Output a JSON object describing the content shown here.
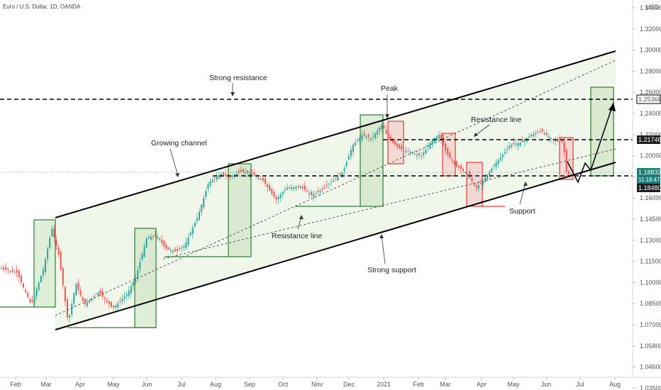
{
  "header": {
    "title": "Euro / U.S. Dollar, 1D, OANDA"
  },
  "currency_label": "USD",
  "chart_data": {
    "type": "candlestick",
    "title": "Euro / U.S. Dollar, 1D, OANDA",
    "x_ticks": [
      "Feb",
      "Mar",
      "Apr",
      "May",
      "Jun",
      "Jul",
      "Aug",
      "Sep",
      "Oct",
      "Nov",
      "Dec",
      "2021",
      "Feb",
      "Mar",
      "Apr",
      "May",
      "Jun",
      "Jul",
      "Aug"
    ],
    "y_ticks": [
      "1.34000",
      "1.32000",
      "1.30000",
      "1.28000",
      "1.26000",
      "1.24000",
      "1.22000",
      "1.20000",
      "1.18000",
      "1.16000",
      "1.14500",
      "1.13000",
      "1.11500",
      "1.10000",
      "1.08500",
      "1.07000",
      "1.05800",
      "1.04600",
      "1.03500"
    ],
    "ylim": [
      1.03,
      1.345
    ],
    "price_labels": [
      {
        "id": "level-1",
        "value": "1.25366",
        "style": "outline"
      },
      {
        "id": "level-2",
        "value": "1.21746",
        "style": "dark"
      },
      {
        "id": "current",
        "value": "1.18832",
        "style": "teal"
      },
      {
        "id": "countdown",
        "value": "11:18:47",
        "style": "teal"
      },
      {
        "id": "level-3",
        "value": "1.18480",
        "style": "dark"
      }
    ],
    "annotations": {
      "strong_resistance": "Strong resistance",
      "peak": "Peak",
      "resistance_line_1": "Resistance line",
      "growing_channel": "Growing channel",
      "resistance_line_2": "Resistance line",
      "support": "Support",
      "strong_support": "Strong support"
    },
    "horizontal_levels": [
      1.25366,
      1.21746,
      1.1848
    ],
    "colors": {
      "up": "#26a69a",
      "down": "#ef5350",
      "channel_fill": "#eef5e6",
      "green_box": "#2e7d32",
      "red_box": "#e53935",
      "current_label": "#1b7f79"
    }
  }
}
